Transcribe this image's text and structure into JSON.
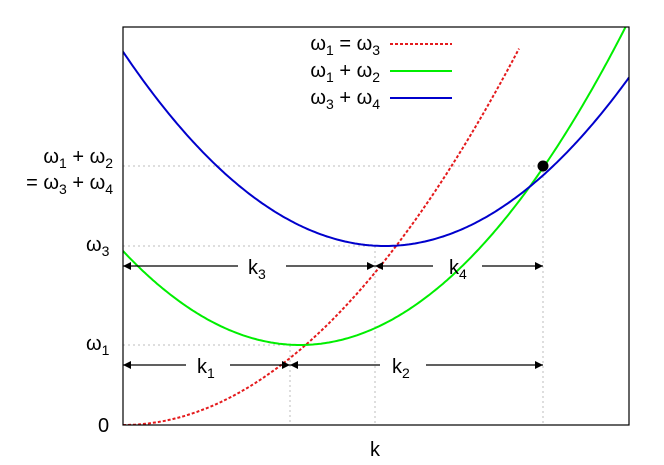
{
  "colors": {
    "omega1_eq_omega3": "#e41a1c",
    "omega1_plus_omega2": "#00ee00",
    "omega3_plus_omega4": "#0000cc",
    "axis": "#000000"
  },
  "legend": [
    {
      "base1": "ω",
      "sub1": "1",
      "op": " = ",
      "base2": "ω",
      "sub2": "3",
      "style": "dashed"
    },
    {
      "base1": "ω",
      "sub1": "1",
      "op": " + ",
      "base2": "ω",
      "sub2": "2",
      "style": "solid"
    },
    {
      "base1": "ω",
      "sub1": "3",
      "op": " + ",
      "base2": "ω",
      "sub2": "4",
      "style": "solid"
    }
  ],
  "y_labels": {
    "sum_line1": {
      "base1": "ω",
      "sub1": "1",
      "op": " + ",
      "base2": "ω",
      "sub2": "2"
    },
    "sum_line2": {
      "prefix": "= ",
      "base1": "ω",
      "sub1": "3",
      "op": " + ",
      "base2": "ω",
      "sub2": "4"
    },
    "omega3": {
      "base": "ω",
      "sub": "3"
    },
    "omega1": {
      "base": "ω",
      "sub": "1"
    },
    "zero": "0"
  },
  "x_label": "k",
  "intervals": [
    {
      "base": "k",
      "sub": "3"
    },
    {
      "base": "k",
      "sub": "4"
    },
    {
      "base": "k",
      "sub": "1"
    },
    {
      "base": "k",
      "sub": "2"
    }
  ]
}
